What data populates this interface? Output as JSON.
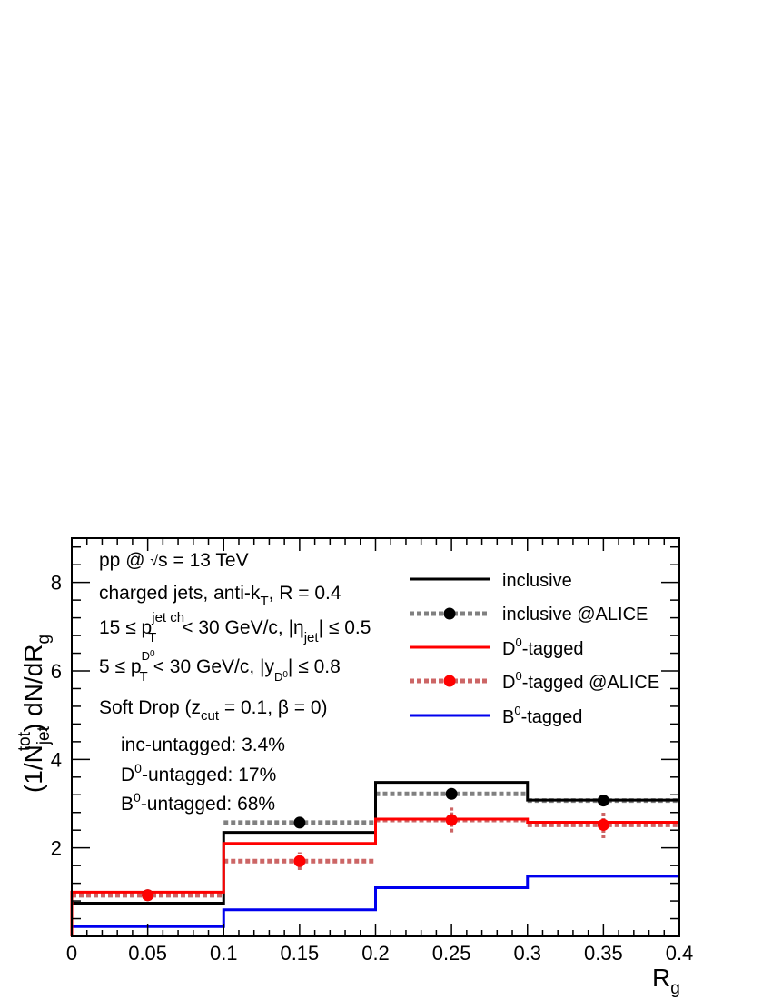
{
  "chart_data": {
    "type": "line",
    "title": "",
    "xlabel": "R_g",
    "ylabel": "(1/N_jet^tot) dN/dR_g",
    "xlim": [
      0,
      0.4
    ],
    "ylim": [
      0,
      9.0
    ],
    "x_ticks": [
      "0",
      "0.05",
      "0.1",
      "0.15",
      "0.2",
      "0.25",
      "0.3",
      "0.35",
      "0.4"
    ],
    "y_ticks": [
      "2",
      "4",
      "6",
      "8"
    ],
    "bin_edges": [
      0,
      0.1,
      0.2,
      0.3,
      0.4
    ],
    "bin_centers": [
      0.05,
      0.15,
      0.25,
      0.35
    ],
    "legend_position": "top-right",
    "series": [
      {
        "name": "inclusive",
        "color": "#000000",
        "style": "solid",
        "values": [
          0.75,
          2.35,
          3.48,
          3.08
        ]
      },
      {
        "name": "inclusive @ALICE",
        "color": "#808080",
        "style": "dotted-markers",
        "marker": "#000000",
        "values": [
          0.93,
          2.57,
          3.22,
          3.07
        ],
        "errors": [
          0.0,
          0.0,
          0.0,
          0.0
        ]
      },
      {
        "name": "D0-tagged",
        "color": "#ff0000",
        "style": "solid",
        "values": [
          1.0,
          2.1,
          2.65,
          2.58
        ]
      },
      {
        "name": "D0-tagged @ALICE",
        "color": "#cc6666",
        "style": "dotted-markers",
        "marker": "#ff0000",
        "values": [
          0.93,
          1.7,
          2.63,
          2.52
        ],
        "errors": [
          0.08,
          0.2,
          0.28,
          0.3
        ]
      },
      {
        "name": "B0-tagged",
        "color": "#0000ee",
        "style": "solid",
        "values": [
          0.22,
          0.6,
          1.1,
          1.36
        ]
      }
    ],
    "annotations": {
      "line1": "pp @ √s = 13 TeV",
      "line2": "charged jets, anti-kT, R = 0.4",
      "line3": "15 ≤ pT jet ch < 30 GeV/c, |ηjet| ≤ 0.5",
      "line4": "5 ≤ pT D0 < 30 GeV/c, |yD0| ≤ 0.8",
      "line5": "Soft Drop (zcut = 0.1, β = 0)",
      "line6": "inc-untagged: 3.4%",
      "line7": "D0-untagged: 17%",
      "line8": "B0-untagged: 68%"
    }
  }
}
